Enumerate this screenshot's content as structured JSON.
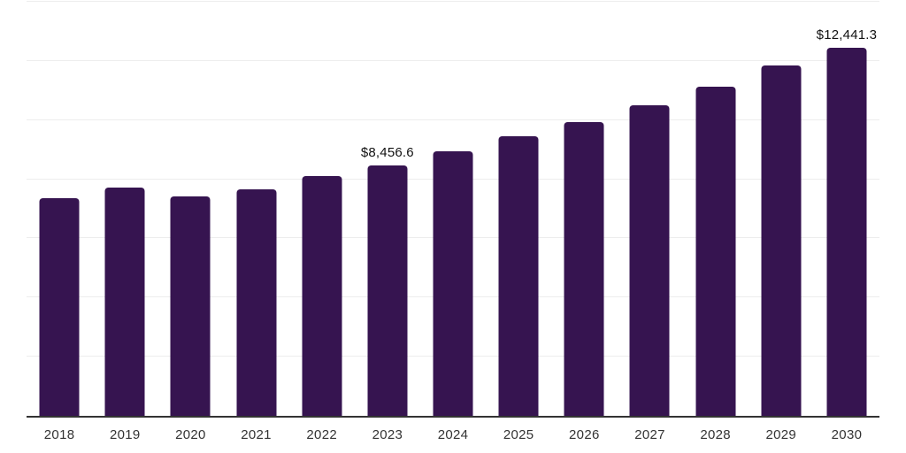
{
  "chart": {
    "bar_color": "#361450",
    "axis_color": "#333333",
    "gridline_color": "#ededed",
    "data_label_color": "#111111",
    "tick_label_color": "#333333"
  },
  "chart_data": {
    "type": "bar",
    "title": "",
    "xlabel": "",
    "ylabel": "",
    "categories": [
      "2018",
      "2019",
      "2020",
      "2021",
      "2022",
      "2023",
      "2024",
      "2025",
      "2026",
      "2027",
      "2028",
      "2029",
      "2030"
    ],
    "values": [
      7365,
      7720,
      7425,
      7665,
      8120,
      8456.6,
      8955,
      9460,
      9935,
      10515,
      11130,
      11845,
      12441.3
    ],
    "data_labels": [
      "",
      "",
      "",
      "",
      "",
      "$8,456.6",
      "",
      "",
      "",
      "",
      "",
      "",
      "$12,441.3"
    ],
    "ylim": [
      0,
      14000
    ],
    "gridline_interval": 2000,
    "grid": true,
    "legend": "none",
    "y_axis_tick_labels_visible": false
  }
}
